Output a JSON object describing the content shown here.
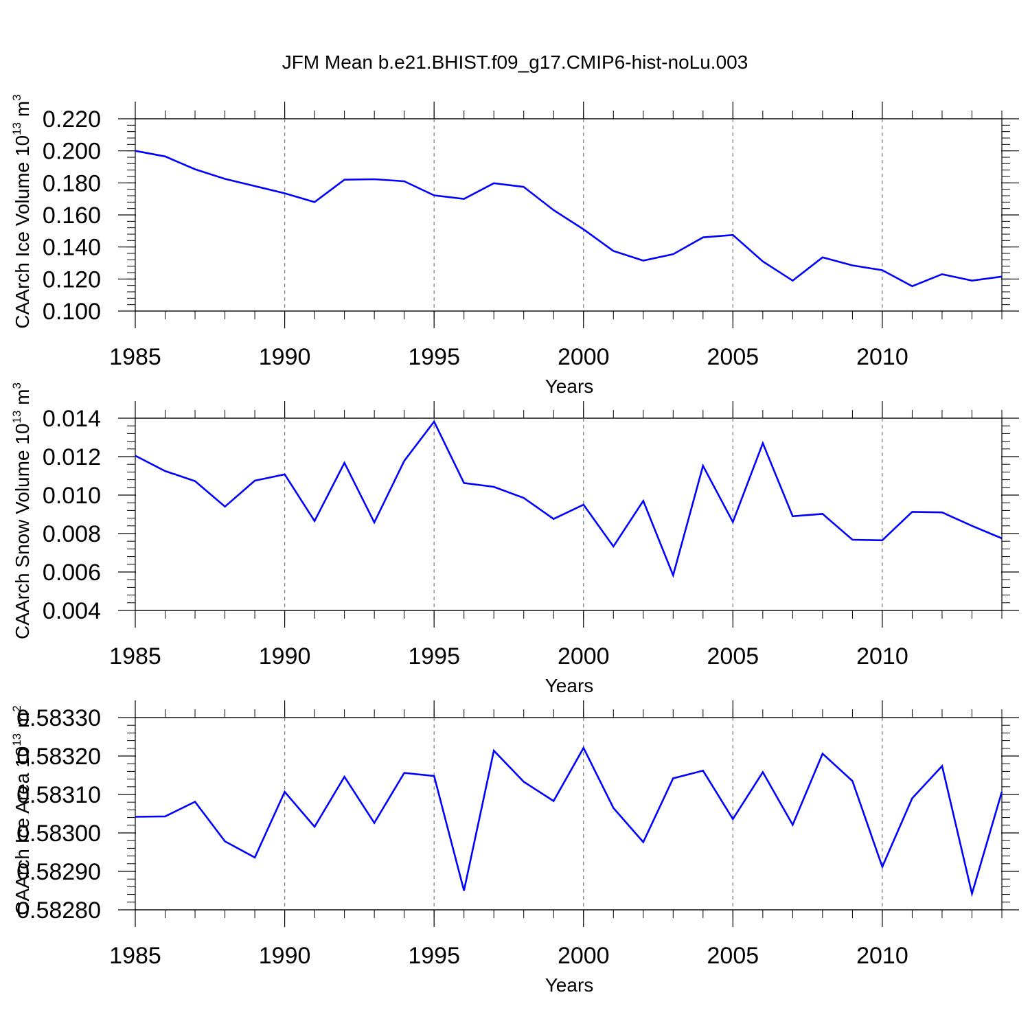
{
  "title": "JFM Mean b.e21.BHIST.f09_g17.CMIP6-hist-noLu.003",
  "colors": {
    "series": "#0000ff",
    "axis": "#000000",
    "grid": "#888888"
  },
  "chart_data": [
    {
      "type": "line",
      "ylabel": "CAArch Ice Volume 10",
      "ylabel_exponent": "13",
      "ylabel_unit": " m",
      "ylabel_unit_exponent": "3",
      "xlabel": "Years",
      "xlim": [
        1985,
        2014
      ],
      "ylim": [
        0.1,
        0.22
      ],
      "yticks": [
        "0.220",
        "0.200",
        "0.180",
        "0.160",
        "0.140",
        "0.120",
        "0.100"
      ],
      "ytick_values": [
        0.22,
        0.2,
        0.18,
        0.16,
        0.14,
        0.12,
        0.1
      ],
      "xticks": [
        "1985",
        "1990",
        "1995",
        "2000",
        "2005",
        "2010"
      ],
      "xtick_values": [
        1985,
        1990,
        1995,
        2000,
        2005,
        2010
      ],
      "x": [
        1985,
        1986,
        1987,
        1988,
        1989,
        1990,
        1991,
        1992,
        1993,
        1994,
        1995,
        1996,
        1997,
        1998,
        1999,
        2000,
        2001,
        2002,
        2003,
        2004,
        2005,
        2006,
        2007,
        2008,
        2009,
        2010,
        2011,
        2012,
        2013,
        2014
      ],
      "series": [
        {
          "name": "CAArch Ice Volume",
          "values": [
            0.2,
            0.1965,
            0.1885,
            0.1825,
            0.178,
            0.1735,
            0.168,
            0.182,
            0.1823,
            0.181,
            0.1722,
            0.17,
            0.1798,
            0.1775,
            0.163,
            0.151,
            0.1375,
            0.1315,
            0.1355,
            0.146,
            0.1475,
            0.131,
            0.119,
            0.1335,
            0.1285,
            0.1255,
            0.1155,
            0.123,
            0.119,
            0.1215
          ]
        }
      ],
      "grid": "vertical dashed at major x ticks"
    },
    {
      "type": "line",
      "ylabel": "CAArch Snow Volume 10",
      "ylabel_exponent": "13",
      "ylabel_unit": " m",
      "ylabel_unit_exponent": "3",
      "xlabel": "Years",
      "xlim": [
        1985,
        2014
      ],
      "ylim": [
        0.004,
        0.014
      ],
      "yticks": [
        "0.014",
        "0.012",
        "0.010",
        "0.008",
        "0.006",
        "0.004"
      ],
      "ytick_values": [
        0.014,
        0.012,
        0.01,
        0.008,
        0.006,
        0.004
      ],
      "xticks": [
        "1985",
        "1990",
        "1995",
        "2000",
        "2005",
        "2010"
      ],
      "xtick_values": [
        1985,
        1990,
        1995,
        2000,
        2005,
        2010
      ],
      "x": [
        1985,
        1986,
        1987,
        1988,
        1989,
        1990,
        1991,
        1992,
        1993,
        1994,
        1995,
        1996,
        1997,
        1998,
        1999,
        2000,
        2001,
        2002,
        2003,
        2004,
        2005,
        2006,
        2007,
        2008,
        2009,
        2010,
        2011,
        2012,
        2013,
        2014
      ],
      "series": [
        {
          "name": "CAArch Snow Volume",
          "values": [
            0.01205,
            0.01125,
            0.01073,
            0.0094,
            0.01075,
            0.01108,
            0.00865,
            0.01168,
            0.00858,
            0.01178,
            0.01382,
            0.01063,
            0.01043,
            0.00985,
            0.00876,
            0.0095,
            0.00733,
            0.0097,
            0.00583,
            0.01152,
            0.0086,
            0.0127,
            0.0089,
            0.00902,
            0.00768,
            0.00765,
            0.00913,
            0.0091,
            0.0084,
            0.00775
          ]
        }
      ],
      "grid": "vertical dashed at major x ticks"
    },
    {
      "type": "line",
      "ylabel": "CAArch Ice Area 10",
      "ylabel_exponent": "13",
      "ylabel_unit": " m",
      "ylabel_unit_exponent": "2",
      "xlabel": "Years",
      "xlim": [
        1985,
        2014
      ],
      "ylim": [
        0.5828,
        0.5833
      ],
      "yticks": [
        "0.58330",
        "0.58320",
        "0.58310",
        "0.58300",
        "0.58290",
        "0.58280"
      ],
      "ytick_values": [
        0.5833,
        0.5832,
        0.5831,
        0.583,
        0.5829,
        0.5828
      ],
      "xticks": [
        "1985",
        "1990",
        "1995",
        "2000",
        "2005",
        "2010"
      ],
      "xtick_values": [
        1985,
        1990,
        1995,
        2000,
        2005,
        2010
      ],
      "x": [
        1985,
        1986,
        1987,
        1988,
        1989,
        1990,
        1991,
        1992,
        1993,
        1994,
        1995,
        1996,
        1997,
        1998,
        1999,
        2000,
        2001,
        2002,
        2003,
        2004,
        2005,
        2006,
        2007,
        2008,
        2009,
        2010,
        2011,
        2012,
        2013,
        2014
      ],
      "series": [
        {
          "name": "CAArch Ice Area",
          "values": [
            0.583042,
            0.583043,
            0.583081,
            0.582978,
            0.582936,
            0.583107,
            0.583016,
            0.583146,
            0.583026,
            0.583156,
            0.583148,
            0.58285,
            0.583214,
            0.583133,
            0.583083,
            0.583221,
            0.583065,
            0.582976,
            0.583142,
            0.583162,
            0.583036,
            0.583158,
            0.583021,
            0.583206,
            0.583135,
            0.582912,
            0.58309,
            0.583174,
            0.582842,
            0.583107
          ]
        }
      ],
      "grid": "vertical dashed at major x ticks"
    }
  ]
}
